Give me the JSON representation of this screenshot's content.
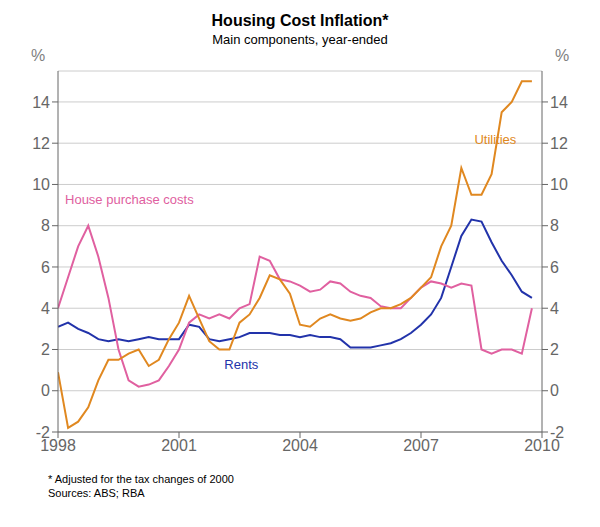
{
  "chart_data": {
    "type": "line",
    "title": "Housing Cost Inflation*",
    "subtitle": "Main components, year-ended",
    "footnote": "*   Adjusted for the tax changes of 2000",
    "sources": "Sources: ABS; RBA",
    "y_label": "%",
    "y2_label": "%",
    "x": [
      1998.0,
      1998.25,
      1998.5,
      1998.75,
      1999.0,
      1999.25,
      1999.5,
      1999.75,
      2000.0,
      2000.25,
      2000.5,
      2000.75,
      2001.0,
      2001.25,
      2001.5,
      2001.75,
      2002.0,
      2002.25,
      2002.5,
      2002.75,
      2003.0,
      2003.25,
      2003.5,
      2003.75,
      2004.0,
      2004.25,
      2004.5,
      2004.75,
      2005.0,
      2005.25,
      2005.5,
      2005.75,
      2006.0,
      2006.25,
      2006.5,
      2006.75,
      2007.0,
      2007.25,
      2007.5,
      2007.75,
      2008.0,
      2008.25,
      2008.5,
      2008.75,
      2009.0,
      2009.25,
      2009.5,
      2009.75
    ],
    "series": [
      {
        "name": "Rents",
        "color": "#2233aa",
        "values": [
          3.1,
          3.3,
          3.0,
          2.8,
          2.5,
          2.4,
          2.5,
          2.4,
          2.5,
          2.6,
          2.5,
          2.5,
          2.5,
          3.2,
          3.1,
          2.5,
          2.4,
          2.5,
          2.6,
          2.8,
          2.8,
          2.8,
          2.7,
          2.7,
          2.6,
          2.7,
          2.6,
          2.6,
          2.5,
          2.1,
          2.1,
          2.1,
          2.2,
          2.3,
          2.5,
          2.8,
          3.2,
          3.7,
          4.5,
          6.0,
          7.5,
          8.3,
          8.2,
          7.2,
          6.3,
          5.6,
          4.8,
          4.5
        ]
      },
      {
        "name": "House purchase costs",
        "color": "#e060a0",
        "values": [
          4.0,
          5.5,
          7.0,
          8.0,
          6.5,
          4.5,
          2.0,
          0.5,
          0.2,
          0.3,
          0.5,
          1.2,
          2.0,
          3.3,
          3.7,
          3.5,
          3.7,
          3.5,
          4.0,
          4.2,
          6.5,
          6.3,
          5.4,
          5.3,
          5.1,
          4.8,
          4.9,
          5.3,
          5.2,
          4.8,
          4.6,
          4.5,
          4.1,
          4.0,
          4.0,
          4.5,
          5.0,
          5.3,
          5.2,
          5.0,
          5.2,
          5.1,
          2.0,
          1.8,
          2.0,
          2.0,
          1.8,
          4.0
        ]
      },
      {
        "name": "Utilities",
        "color": "#e08820",
        "values": [
          0.9,
          -1.8,
          -1.5,
          -0.8,
          0.5,
          1.5,
          1.5,
          1.8,
          2.0,
          1.2,
          1.5,
          2.5,
          3.3,
          4.6,
          3.5,
          2.4,
          2.0,
          2.0,
          3.3,
          3.7,
          4.5,
          5.6,
          5.4,
          4.7,
          3.2,
          3.1,
          3.5,
          3.7,
          3.5,
          3.4,
          3.5,
          3.8,
          4.0,
          4.0,
          4.2,
          4.5,
          5.0,
          5.5,
          7.0,
          8.0,
          10.8,
          9.5,
          9.5,
          10.5,
          13.5,
          14.0,
          15.0,
          15.0
        ]
      }
    ],
    "annotations": [
      {
        "text": "Utilities",
        "x": 2008.2,
        "y": 12.2,
        "color": "#e08820"
      },
      {
        "text": "House purchase costs",
        "x": 1998.05,
        "y": 9.3,
        "color": "#e060a0"
      },
      {
        "text": "Rents",
        "x": 2002.0,
        "y": 1.3,
        "color": "#2233aa"
      }
    ],
    "xlim": [
      1998.0,
      2010.0
    ],
    "xticks": [
      1998,
      2001,
      2004,
      2007,
      2010
    ],
    "ylim": [
      -2,
      15.5
    ],
    "yticks": [
      -2,
      0,
      2,
      4,
      6,
      8,
      10,
      12,
      14
    ],
    "y2lim": [
      -2,
      15.5
    ],
    "y2ticks": [
      -2,
      0,
      2,
      4,
      6,
      8,
      10,
      12,
      14
    ],
    "grid": "y"
  }
}
